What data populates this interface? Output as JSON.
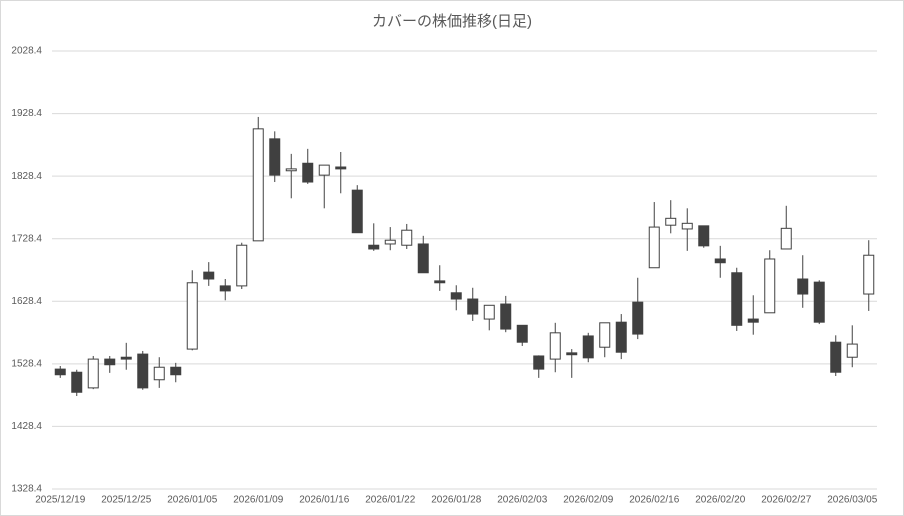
{
  "chart_data": {
    "type": "candlestick",
    "title": "カバーの株価推移(日足)",
    "categories": [
      "2025/12/19",
      null,
      null,
      null,
      "2025/12/25",
      null,
      null,
      null,
      "2026/01/05",
      null,
      null,
      null,
      "2026/01/09",
      null,
      null,
      null,
      "2026/01/16",
      null,
      null,
      null,
      "2026/01/22",
      null,
      null,
      null,
      "2026/01/28",
      null,
      null,
      null,
      "2026/02/03",
      null,
      null,
      null,
      "2026/02/09",
      null,
      null,
      null,
      "2026/02/16",
      null,
      null,
      null,
      "2026/02/20",
      null,
      null,
      null,
      "2026/02/27",
      null,
      null,
      null,
      "2026/03/05",
      null
    ],
    "open": [
      1520,
      1515,
      1490,
      1536,
      1539,
      1544,
      1503,
      1523,
      1552,
      1675,
      1653,
      1653,
      1725,
      1888,
      1837,
      1849,
      1830,
      1843,
      1806,
      1718,
      1720,
      1718,
      1720,
      1661,
      1642,
      1632,
      1600,
      1624,
      1590,
      1541,
      1536,
      1546,
      1573,
      1555,
      1595,
      1627,
      1682,
      1750,
      1744,
      1749,
      1696,
      1674,
      1600,
      1610,
      1712,
      1664,
      1659,
      1563,
      1539,
      1640
    ],
    "high": [
      1525,
      1519,
      1541,
      1541,
      1562,
      1549,
      1539,
      1530,
      1678,
      1691,
      1664,
      1722,
      1923,
      1900,
      1864,
      1872,
      1846,
      1867,
      1814,
      1753,
      1747,
      1752,
      1733,
      1686,
      1654,
      1650,
      1622,
      1637,
      1590,
      1542,
      1594,
      1552,
      1578,
      1594,
      1608,
      1666,
      1787,
      1790,
      1777,
      1749,
      1717,
      1682,
      1638,
      1710,
      1781,
      1702,
      1662,
      1574,
      1590,
      1726
    ],
    "low": [
      1506,
      1477,
      1488,
      1514,
      1519,
      1487,
      1490,
      1499,
      1550,
      1653,
      1630,
      1648,
      1725,
      1819,
      1793,
      1816,
      1777,
      1801,
      1738,
      1709,
      1710,
      1712,
      1674,
      1645,
      1614,
      1597,
      1582,
      1579,
      1557,
      1506,
      1515,
      1506,
      1531,
      1539,
      1536,
      1568,
      1682,
      1737,
      1709,
      1714,
      1666,
      1581,
      1575,
      1610,
      1712,
      1618,
      1592,
      1509,
      1523,
      1613
    ],
    "close": [
      1511,
      1483,
      1536,
      1527,
      1536,
      1490,
      1523,
      1511,
      1658,
      1664,
      1645,
      1718,
      1904,
      1830,
      1840,
      1819,
      1846,
      1840,
      1738,
      1712,
      1726,
      1742,
      1674,
      1658,
      1632,
      1608,
      1622,
      1584,
      1563,
      1520,
      1578,
      1543,
      1538,
      1594,
      1547,
      1576,
      1747,
      1761,
      1753,
      1717,
      1690,
      1590,
      1595,
      1696,
      1745,
      1640,
      1595,
      1515,
      1560,
      1702
    ],
    "up_color": "#ffffff",
    "down_color": "#404040",
    "ylim": [
      1328.4,
      2028.4
    ],
    "yticks": [
      1328.4,
      1428.4,
      1528.4,
      1628.4,
      1728.4,
      1828.4,
      1928.4,
      2028.4
    ],
    "grid": true
  }
}
